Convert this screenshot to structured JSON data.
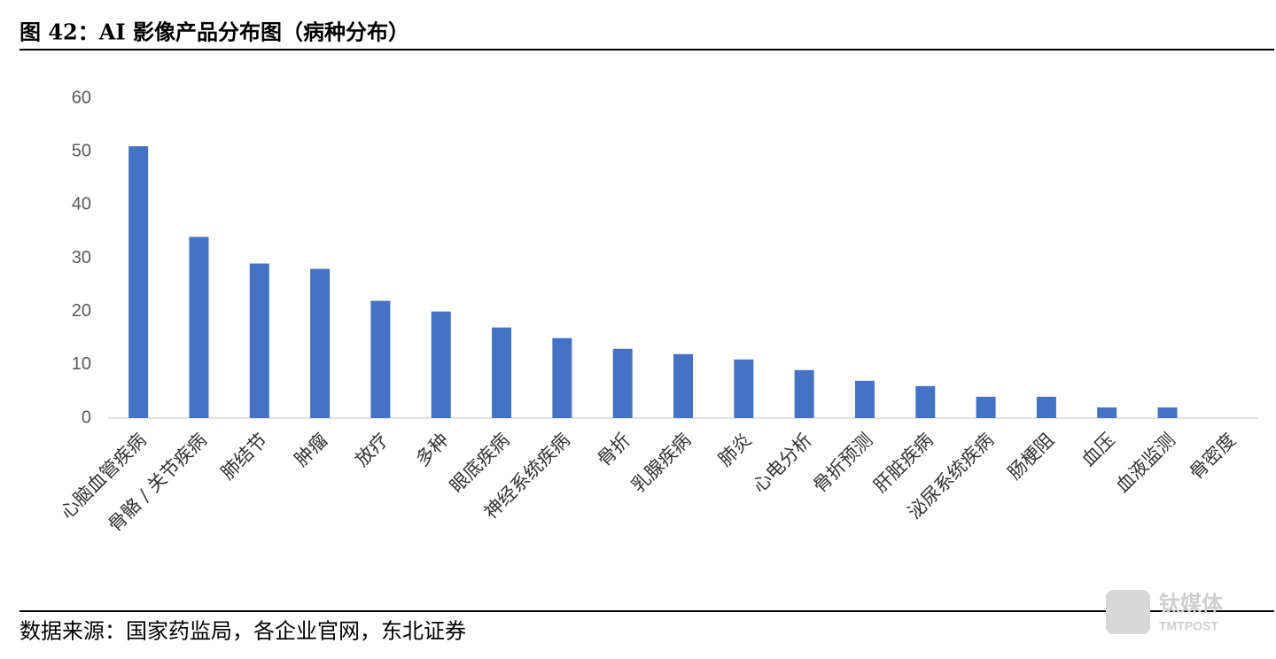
{
  "chart_data": {
    "type": "bar",
    "title": "图 42：AI 影像产品分布图（病种分布）",
    "source": "数据来源：国家药监局，各企业官网，东北证券",
    "watermark": [
      "钛媒体",
      "TMTPOST"
    ],
    "categories": [
      "心脑血管疾病",
      "骨骼 / 关节疾病",
      "肺结节",
      "肿瘤",
      "放疗",
      "多种",
      "眼底疾病",
      "神经系统疾病",
      "骨折",
      "乳腺疾病",
      "肺炎",
      "心电分析",
      "骨折预测",
      "肝脏疾病",
      "泌尿系统疾病",
      "肠梗阻",
      "血压",
      "血液监测",
      "骨密度"
    ],
    "values": [
      51,
      34,
      29,
      28,
      22,
      20,
      17,
      15,
      13,
      12,
      11,
      9,
      7,
      6,
      4,
      4,
      2,
      2,
      0
    ],
    "color": "#4472c4",
    "ylim": [
      0,
      60
    ],
    "yticks": [
      0,
      10,
      20,
      30,
      40,
      50,
      60
    ],
    "grid": false
  }
}
